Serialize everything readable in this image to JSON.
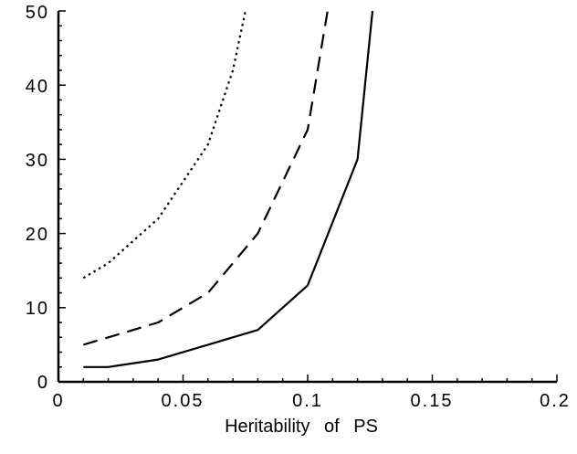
{
  "chart_data": {
    "type": "line",
    "title": "",
    "xlabel": "Heritability of PS",
    "ylabel": "",
    "xlim": [
      0,
      0.2
    ],
    "ylim": [
      0,
      50
    ],
    "xticks": [
      "0",
      "0.05",
      "0.1",
      "0.15",
      "0.2"
    ],
    "yticks": [
      "0",
      "10",
      "20",
      "30",
      "40",
      "50"
    ],
    "grid": false,
    "legend": "none",
    "series": [
      {
        "style": "solid",
        "points": [
          [
            0.01,
            2
          ],
          [
            0.02,
            2
          ],
          [
            0.04,
            3
          ],
          [
            0.06,
            5
          ],
          [
            0.08,
            7
          ],
          [
            0.1,
            13
          ],
          [
            0.12,
            30
          ],
          [
            0.126,
            50
          ]
        ]
      },
      {
        "style": "dashed",
        "points": [
          [
            0.01,
            5
          ],
          [
            0.02,
            6
          ],
          [
            0.04,
            8
          ],
          [
            0.06,
            12
          ],
          [
            0.08,
            20
          ],
          [
            0.1,
            34
          ],
          [
            0.108,
            50
          ]
        ]
      },
      {
        "style": "dotted",
        "points": [
          [
            0.01,
            14
          ],
          [
            0.02,
            16
          ],
          [
            0.04,
            22
          ],
          [
            0.06,
            32
          ],
          [
            0.07,
            42
          ],
          [
            0.075,
            50
          ]
        ]
      }
    ]
  }
}
